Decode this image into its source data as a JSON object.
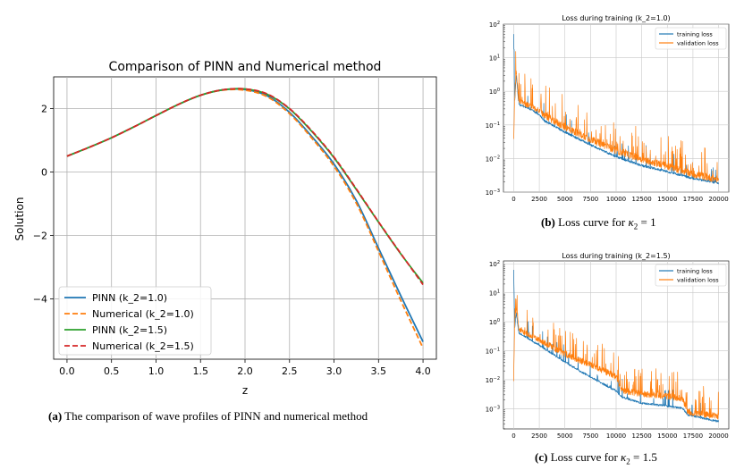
{
  "chart_data": [
    {
      "type": "line",
      "title": "Comparison of PINN and Numerical method",
      "xlabel": "z",
      "ylabel": "Solution",
      "xlim": [
        -0.15,
        4.15
      ],
      "ylim": [
        -5.9,
        3.0
      ],
      "xticks": [
        "0.0",
        "0.5",
        "1.0",
        "1.5",
        "2.0",
        "2.5",
        "3.0",
        "3.5",
        "4.0"
      ],
      "xtick_values": [
        0,
        0.5,
        1,
        1.5,
        2,
        2.5,
        3,
        3.5,
        4
      ],
      "yticks": [
        "2",
        "0",
        "−2",
        "−4"
      ],
      "ytick_values": [
        2,
        0,
        -2,
        -4
      ],
      "grid": true,
      "legend_position": "lower-left",
      "x": [
        0,
        0.25,
        0.5,
        0.75,
        1.0,
        1.25,
        1.5,
        1.75,
        2.0,
        2.25,
        2.5,
        2.75,
        3.0,
        3.25,
        3.5,
        3.75,
        4.0
      ],
      "series": [
        {
          "name": "PINN  (k_2=1.0)",
          "color": "#1f77b4",
          "dash": "solid",
          "values": [
            0.5,
            0.78,
            1.08,
            1.42,
            1.78,
            2.13,
            2.42,
            2.59,
            2.6,
            2.4,
            1.88,
            1.12,
            0.25,
            -0.9,
            -2.4,
            -3.9,
            -5.35
          ]
        },
        {
          "name": "Numerical (k_2=1.0)",
          "color": "#ff7f0e",
          "dash": "dashed",
          "values": [
            0.5,
            0.78,
            1.08,
            1.42,
            1.78,
            2.13,
            2.42,
            2.58,
            2.58,
            2.37,
            1.84,
            1.07,
            0.18,
            -0.98,
            -2.5,
            -4.05,
            -5.55
          ]
        },
        {
          "name": "PINN  (k_2=1.5)",
          "color": "#2ca02c",
          "dash": "solid",
          "values": [
            0.5,
            0.78,
            1.08,
            1.42,
            1.78,
            2.13,
            2.42,
            2.59,
            2.62,
            2.45,
            1.99,
            1.28,
            0.45,
            -0.55,
            -1.58,
            -2.58,
            -3.5
          ]
        },
        {
          "name": "Numerical (k_2=1.5)",
          "color": "#d62728",
          "dash": "dashed",
          "values": [
            0.5,
            0.78,
            1.08,
            1.42,
            1.78,
            2.13,
            2.42,
            2.59,
            2.62,
            2.46,
            2.0,
            1.3,
            0.47,
            -0.53,
            -1.57,
            -2.57,
            -3.55
          ]
        }
      ]
    },
    {
      "type": "line",
      "title": "Loss during training (k_2=1.0)",
      "log_y": true,
      "ylim_exp": [
        -3,
        2
      ],
      "xlim": [
        -1000,
        21000
      ],
      "xticks": [
        "0",
        "2500",
        "5000",
        "7500",
        "10000",
        "12500",
        "15000",
        "17500",
        "20000"
      ],
      "xtick_values": [
        0,
        2500,
        5000,
        7500,
        10000,
        12500,
        15000,
        17500,
        20000
      ],
      "ytick_exponents": [
        -3,
        -2,
        -1,
        0,
        1,
        2
      ],
      "grid": true,
      "legend_position": "top-right",
      "series": [
        {
          "name": "training loss",
          "color": "#1f77b4",
          "x": [
            0,
            100,
            250,
            500,
            1500,
            2500,
            3000,
            5000,
            7500,
            10000,
            12500,
            15000,
            17500,
            20000
          ],
          "values": [
            50,
            0.5,
            3,
            0.4,
            0.3,
            0.2,
            0.13,
            0.06,
            0.025,
            0.011,
            0.006,
            0.004,
            0.0025,
            0.0018
          ]
        },
        {
          "name": "validation loss",
          "color": "#ff7f0e",
          "x": [
            0,
            100,
            250,
            500,
            1500,
            2500,
            3000,
            5000,
            7500,
            10000,
            12500,
            15000,
            17500,
            20000
          ],
          "values": [
            0.03,
            0.6,
            4,
            0.5,
            0.35,
            0.25,
            0.18,
            0.08,
            0.035,
            0.016,
            0.009,
            0.0055,
            0.0032,
            0.0022
          ]
        }
      ]
    },
    {
      "type": "line",
      "title": "Loss during training (k_2=1.5)",
      "log_y": true,
      "ylim_exp": [
        -3.7,
        2.1
      ],
      "xlim": [
        -1000,
        21000
      ],
      "xticks": [
        "0",
        "2500",
        "5000",
        "7500",
        "10000",
        "12500",
        "15000",
        "17500",
        "20000"
      ],
      "xtick_values": [
        0,
        2500,
        5000,
        7500,
        10000,
        12500,
        15000,
        17500,
        20000
      ],
      "ytick_exponents": [
        -3,
        -2,
        -1,
        0,
        1,
        2
      ],
      "grid": true,
      "legend_position": "top-right",
      "series": [
        {
          "name": "training loss",
          "color": "#1f77b4",
          "x": [
            0,
            100,
            250,
            500,
            2500,
            5000,
            7500,
            10000,
            10500,
            12500,
            15000,
            16500,
            17000,
            20000
          ],
          "values": [
            60,
            0.6,
            2,
            0.4,
            0.15,
            0.04,
            0.012,
            0.004,
            0.0025,
            0.0015,
            0.0012,
            0.001,
            0.0006,
            0.00035
          ]
        },
        {
          "name": "validation loss",
          "color": "#ff7f0e",
          "x": [
            0,
            100,
            250,
            500,
            2500,
            5000,
            7500,
            10000,
            10500,
            12500,
            15000,
            16500,
            17000,
            20000
          ],
          "values": [
            0.01,
            0.8,
            3,
            0.5,
            0.22,
            0.07,
            0.03,
            0.012,
            0.004,
            0.003,
            0.0025,
            0.002,
            0.0007,
            0.0005
          ]
        }
      ]
    }
  ],
  "captions": {
    "a_label": "(a)",
    "a_text": " The comparison of wave profiles of PINN and numerical method",
    "b_label": "(b)",
    "b_text": " Loss curve for ",
    "b_kappa": "κ",
    "b_sub": "2",
    "b_eq": " = 1",
    "c_label": "(c)",
    "c_text": " Loss curve for ",
    "c_kappa": "κ",
    "c_sub": "2",
    "c_eq": " = 1.5"
  }
}
